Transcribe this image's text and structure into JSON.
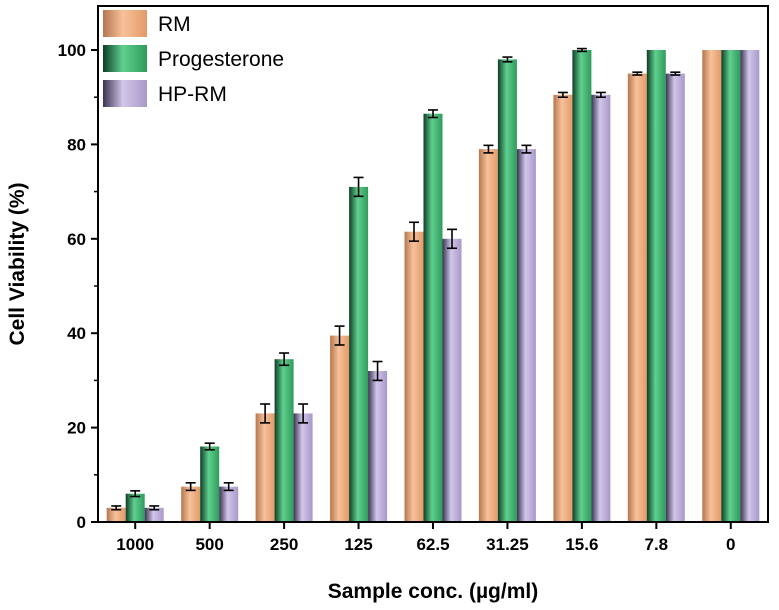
{
  "chart_data": {
    "type": "bar",
    "title": "",
    "xlabel": "Sample conc. (µg/ml)",
    "ylabel": "Cell Viability (%)",
    "ylim": [
      0,
      110
    ],
    "yticks": [
      0,
      20,
      40,
      60,
      80,
      100
    ],
    "categories": [
      "1000",
      "500",
      "250",
      "125",
      "62.5",
      "31.25",
      "15.6",
      "7.8",
      "0"
    ],
    "series": [
      {
        "name": "RM",
        "color": "#f0a878",
        "values": [
          3,
          7.5,
          23,
          39.5,
          61.5,
          79,
          90.5,
          95,
          100
        ],
        "errors": [
          0.4,
          0.8,
          2,
          2,
          2,
          0.8,
          0.5,
          0.3,
          0
        ]
      },
      {
        "name": "Progesterone",
        "color": "#3fb871",
        "values": [
          6,
          16,
          34.5,
          71,
          86.5,
          98,
          100,
          100,
          100
        ],
        "errors": [
          0.6,
          0.7,
          1.3,
          2,
          0.8,
          0.5,
          0.3,
          0,
          0
        ]
      },
      {
        "name": "HP-RM",
        "color": "#b8a8d6",
        "values": [
          3,
          7.5,
          23,
          32,
          60,
          79,
          90.5,
          95,
          100
        ],
        "errors": [
          0.4,
          0.8,
          2,
          2,
          2,
          0.8,
          0.5,
          0.3,
          0
        ]
      }
    ],
    "legend_position": "top-left",
    "grid": false
  }
}
